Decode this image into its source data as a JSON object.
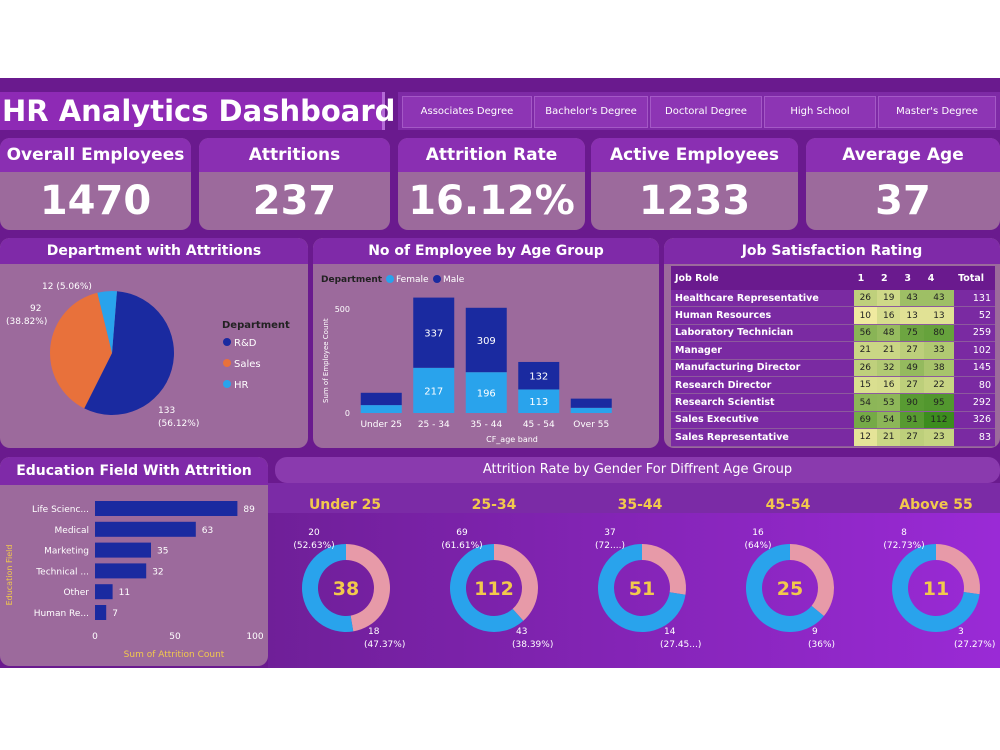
{
  "header": {
    "title": "HR Analytics Dashboard",
    "slicer": [
      "Associates Degree",
      "Bachelor's Degree",
      "Doctoral Degree",
      "High School",
      "Master's Degree"
    ]
  },
  "kpis": [
    {
      "label": "Overall Employees",
      "value": "1470"
    },
    {
      "label": "Attritions",
      "value": "237"
    },
    {
      "label": "Attrition Rate",
      "value": "16.12%"
    },
    {
      "label": "Active Employees",
      "value": "1233"
    },
    {
      "label": "Average Age",
      "value": "37"
    }
  ],
  "colors": {
    "accent": "#6a1a8e",
    "panel": "#9c6a9c",
    "title_bar": "#7f2aa8",
    "dark_blue": "#1a2aa0",
    "light_blue": "#29a3ec",
    "orange": "#e8713b",
    "pink": "#e79aa8",
    "gold": "#f2c94c"
  },
  "chart_data": [
    {
      "type": "pie",
      "title": "Department with Attritions",
      "legend_title": "Department",
      "legend_position": "right",
      "slices": [
        {
          "name": "R&D",
          "value": 133,
          "label": "133",
          "pct": "(56.12%)",
          "color": "#1a2aa0"
        },
        {
          "name": "Sales",
          "value": 92,
          "label": "92",
          "pct": "(38.82%)",
          "color": "#e8713b"
        },
        {
          "name": "HR",
          "value": 12,
          "label": "12 (5.06%)",
          "pct": "",
          "color": "#29a3ec"
        }
      ]
    },
    {
      "type": "bar",
      "title": "No of Employee by Age Group",
      "legend_title": "Department",
      "xlabel": "CF_age band",
      "ylabel": "Sum of Employee Count",
      "ylim": [
        0,
        600
      ],
      "yticks": [
        "0",
        "500"
      ],
      "categories": [
        "Under 25",
        "25 - 34",
        "35 - 44",
        "45 - 54",
        "Over 55"
      ],
      "series": [
        {
          "name": "Female",
          "values": [
            38,
            217,
            196,
            113,
            25
          ],
          "labels": [
            "",
            "217",
            "196",
            "113",
            ""
          ],
          "color": "#29a3ec"
        },
        {
          "name": "Male",
          "values": [
            59,
            337,
            309,
            132,
            44
          ],
          "labels": [
            "",
            "337",
            "309",
            "132",
            ""
          ],
          "color": "#1a2aa0"
        }
      ]
    },
    {
      "type": "table",
      "title": "Job Satisfaction Rating",
      "columns": [
        "Job Role",
        "1",
        "2",
        "3",
        "4",
        "Total"
      ],
      "rows": [
        [
          "Healthcare Representative",
          "26",
          "19",
          "43",
          "43",
          "131"
        ],
        [
          "Human Resources",
          "10",
          "16",
          "13",
          "13",
          "52"
        ],
        [
          "Laboratory Technician",
          "56",
          "48",
          "75",
          "80",
          "259"
        ],
        [
          "Manager",
          "21",
          "21",
          "27",
          "33",
          "102"
        ],
        [
          "Manufacturing Director",
          "26",
          "32",
          "49",
          "38",
          "145"
        ],
        [
          "Research Director",
          "15",
          "16",
          "27",
          "22",
          "80"
        ],
        [
          "Research Scientist",
          "54",
          "53",
          "90",
          "95",
          "292"
        ],
        [
          "Sales Executive",
          "69",
          "54",
          "91",
          "112",
          "326"
        ],
        [
          "Sales Representative",
          "12",
          "21",
          "27",
          "23",
          "83"
        ]
      ]
    },
    {
      "type": "bar",
      "orientation": "horizontal",
      "title": "Education Field With Attrition",
      "xlabel": "Sum of Attrition Count",
      "ylabel": "Education Field",
      "xlim": [
        0,
        100
      ],
      "xticks": [
        "0",
        "50",
        "100"
      ],
      "categories": [
        "Life Scienc...",
        "Medical",
        "Marketing",
        "Technical ...",
        "Other",
        "Human Re..."
      ],
      "values": [
        89,
        63,
        35,
        32,
        11,
        7
      ]
    },
    {
      "type": "pie",
      "style": "donut",
      "title": "Attrition Rate by Gender For Diffrent Age Group",
      "groups": [
        {
          "age": "Under 25",
          "total": "38",
          "male": 20,
          "female": 18,
          "male_label": "20",
          "male_pct": "(52.63%)",
          "female_label": "18",
          "female_pct": "(47.37%)"
        },
        {
          "age": "25-34",
          "total": "112",
          "male": 69,
          "female": 43,
          "male_label": "69",
          "male_pct": "(61.61%)",
          "female_label": "43",
          "female_pct": "(38.39%)"
        },
        {
          "age": "35-44",
          "total": "51",
          "male": 37,
          "female": 14,
          "male_label": "37",
          "male_pct": "(72....)",
          "female_label": "14",
          "female_pct": "(27.45...)"
        },
        {
          "age": "45-54",
          "total": "25",
          "male": 16,
          "female": 9,
          "male_label": "16",
          "male_pct": "(64%)",
          "female_label": "9",
          "female_pct": "(36%)"
        },
        {
          "age": "Above 55",
          "total": "11",
          "male": 8,
          "female": 3,
          "male_label": "8",
          "male_pct": "(72.73%)",
          "female_label": "3",
          "female_pct": "(27.27%)"
        }
      ]
    }
  ]
}
